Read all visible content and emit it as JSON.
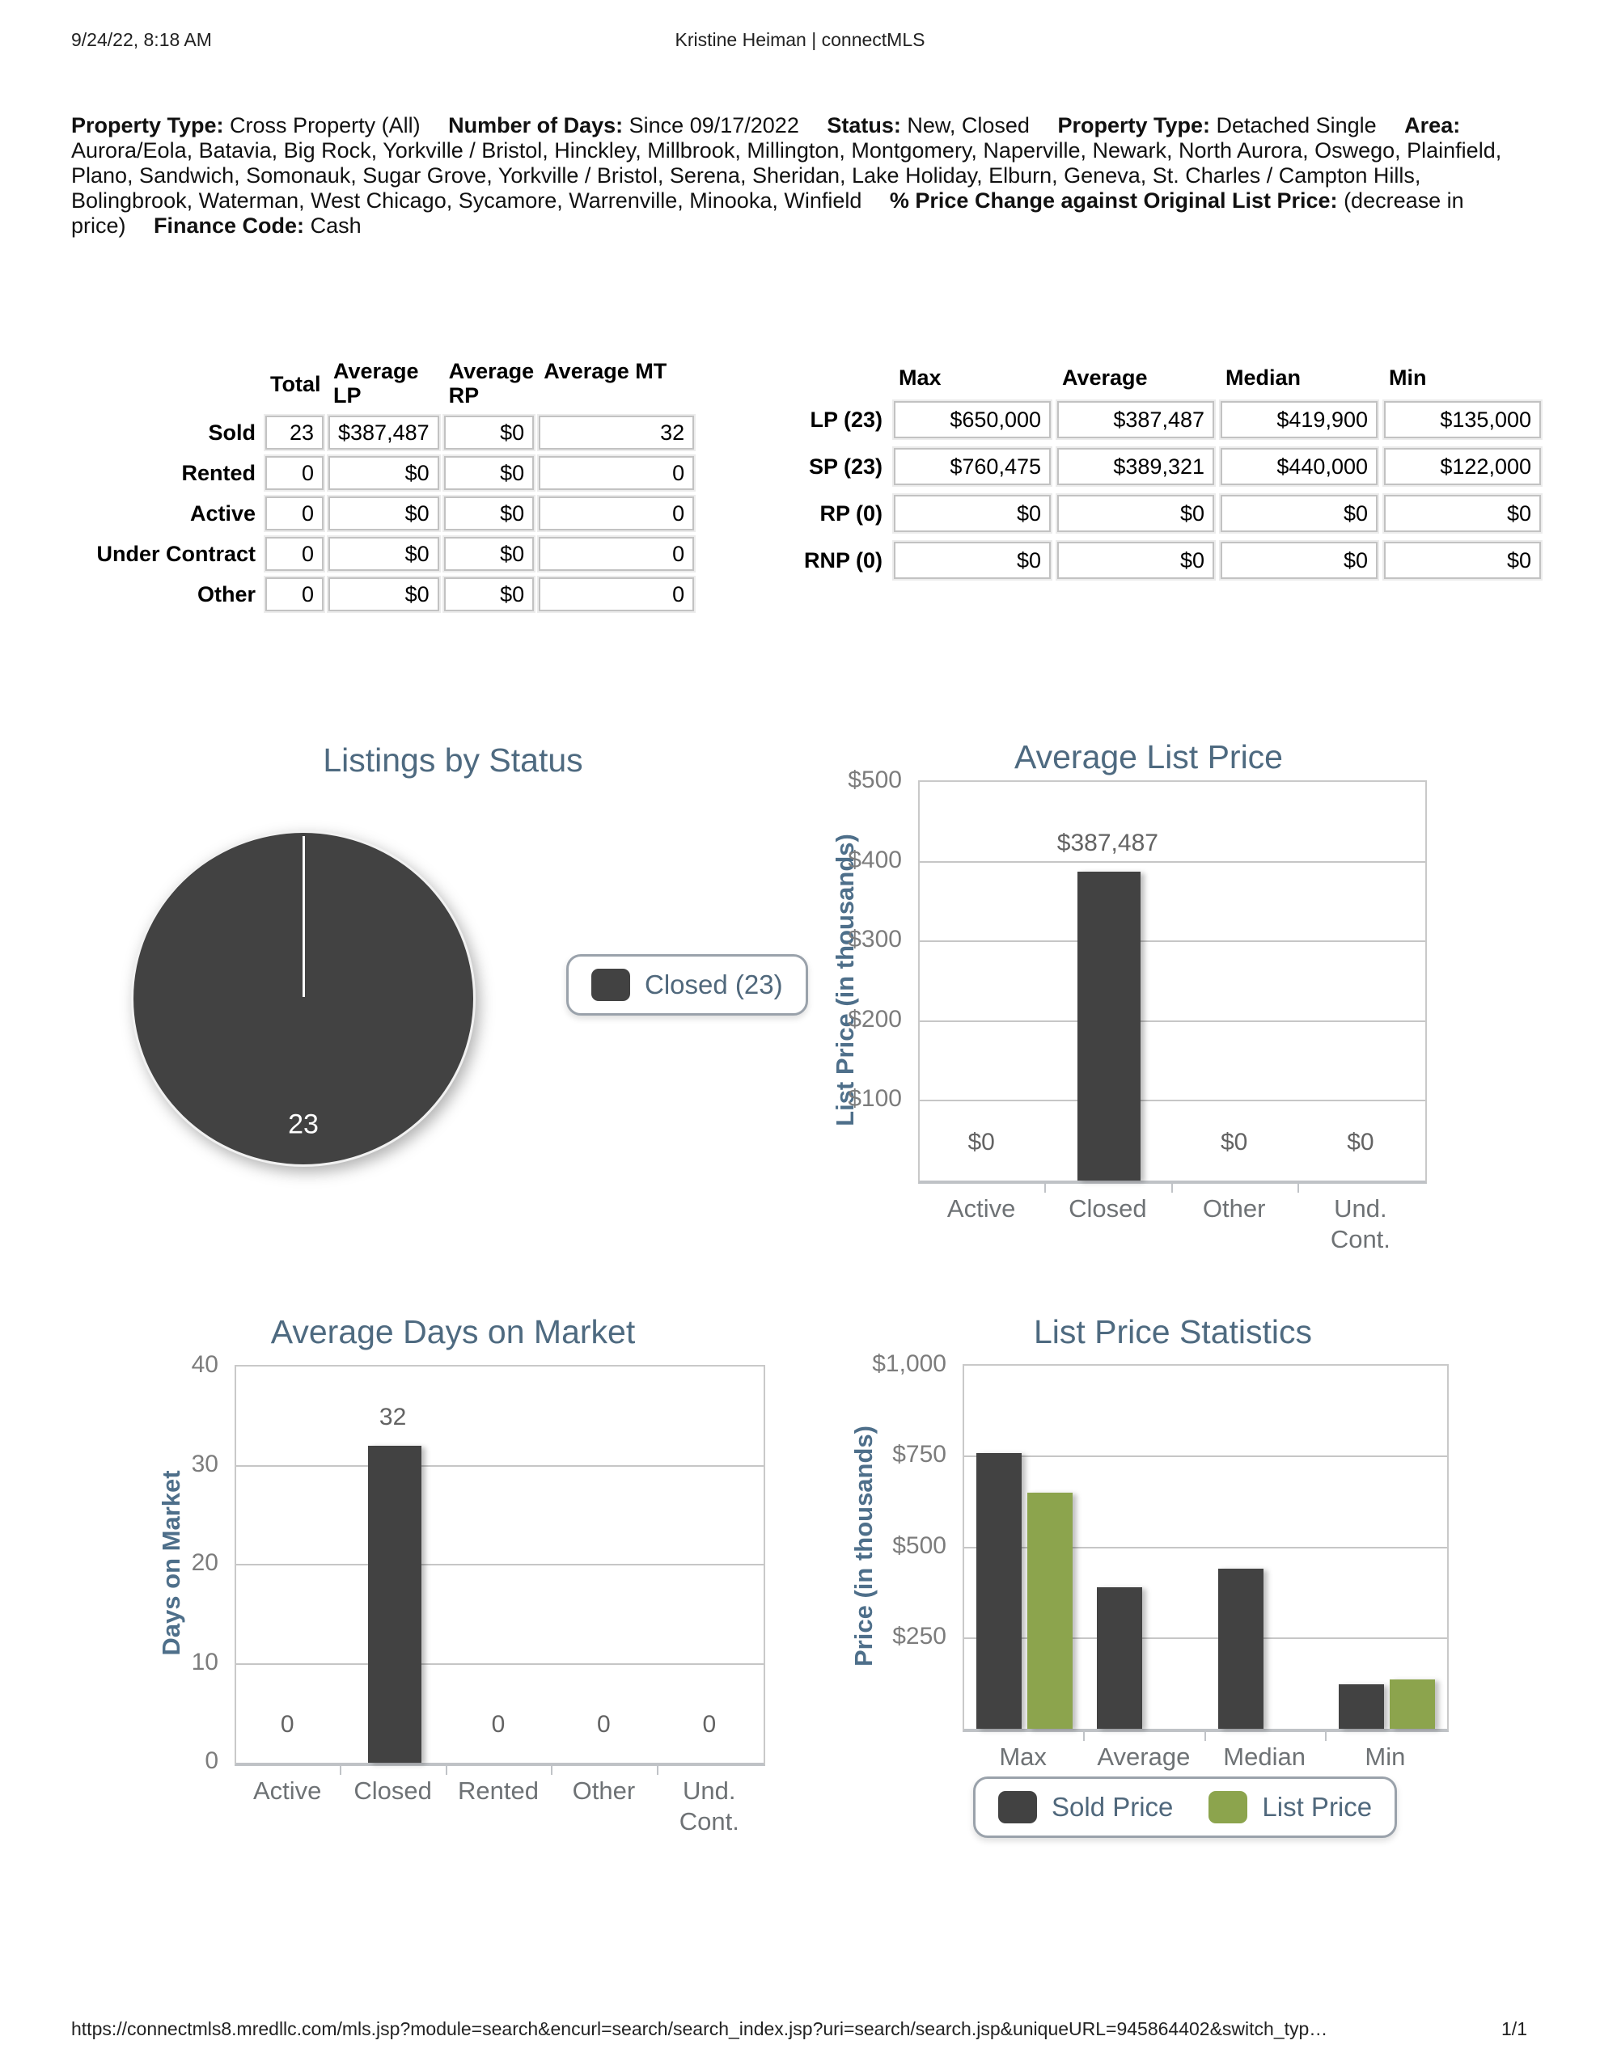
{
  "page": {
    "printed_at": "9/24/22, 8:18 AM",
    "header_title": "Kristine Heiman | connectMLS",
    "footer_url": "https://connectmls8.mredllc.com/mls.jsp?module=search&encurl=search/search_index.jsp?uri=search/search.jsp&uniqueURL=945864402&switch_typ…",
    "footer_page": "1/1"
  },
  "criteria": {
    "segments": [
      {
        "label": "Property Type:",
        "value": "Cross Property (All)"
      },
      {
        "label": "Number of Days:",
        "value": "Since 09/17/2022"
      },
      {
        "label": "Status:",
        "value": "New, Closed"
      },
      {
        "label": "Property Type:",
        "value": "Detached Single"
      },
      {
        "label": "Area:",
        "value": "Aurora/Eola, Batavia, Big Rock, Yorkville / Bristol, Hinckley, Millbrook, Millington, Montgomery, Naperville, Newark, North Aurora, Oswego, Plainfield, Plano, Sandwich, Somonauk, Sugar Grove, Yorkville / Bristol, Serena, Sheridan, Lake Holiday, Elburn, Geneva, St. Charles / Campton Hills, Bolingbrook, Waterman, West Chicago, Sycamore, Warrenville, Minooka, Winfield"
      },
      {
        "label": "% Price Change against Original List Price:",
        "value": "(decrease in price)"
      },
      {
        "label": "Finance Code:",
        "value": "Cash"
      }
    ]
  },
  "status_table": {
    "columns": [
      "Total",
      "Average LP",
      "Average RP",
      "Average MT"
    ],
    "rows": [
      {
        "label": "Sold",
        "values": [
          "23",
          "$387,487",
          "$0",
          "32"
        ]
      },
      {
        "label": "Rented",
        "values": [
          "0",
          "$0",
          "$0",
          "0"
        ]
      },
      {
        "label": "Active",
        "values": [
          "0",
          "$0",
          "$0",
          "0"
        ]
      },
      {
        "label": "Under Contract",
        "values": [
          "0",
          "$0",
          "$0",
          "0"
        ]
      },
      {
        "label": "Other",
        "values": [
          "0",
          "$0",
          "$0",
          "0"
        ]
      }
    ]
  },
  "price_table": {
    "columns": [
      "Max",
      "Average",
      "Median",
      "Min"
    ],
    "rows": [
      {
        "label": "LP (23)",
        "values": [
          "$650,000",
          "$387,487",
          "$419,900",
          "$135,000"
        ]
      },
      {
        "label": "SP (23)",
        "values": [
          "$760,475",
          "$389,321",
          "$440,000",
          "$122,000"
        ]
      },
      {
        "label": "RP (0)",
        "values": [
          "$0",
          "$0",
          "$0",
          "$0"
        ]
      },
      {
        "label": "RNP (0)",
        "values": [
          "$0",
          "$0",
          "$0",
          "$0"
        ]
      }
    ]
  },
  "colors": {
    "chart_title": "#4e6a80",
    "sold_dark": "#424242",
    "list_green": "#8ca44d"
  },
  "chart_data": [
    {
      "id": "listings-by-status",
      "type": "pie",
      "title": "Listings by Status",
      "slices": [
        {
          "label": "Closed",
          "value": 23,
          "color": "#424242",
          "data_label": "23"
        }
      ],
      "legend": [
        {
          "label": "Closed (23)",
          "color": "#424242"
        }
      ],
      "legend_position": "right"
    },
    {
      "id": "average-list-price",
      "type": "bar",
      "title": "Average List Price",
      "ylabel": "List Price (in thousands)",
      "categories": [
        "Active",
        "Closed",
        "Other",
        "Und.\nCont."
      ],
      "values": [
        0,
        387.487,
        0,
        0
      ],
      "bar_labels": [
        "$0",
        "$387,487",
        "$0",
        "$0"
      ],
      "bar_color": "#424242",
      "ylim": [
        0,
        500
      ],
      "yticks": [
        {
          "value": 500,
          "label": "$500"
        },
        {
          "value": 400,
          "label": "$400"
        },
        {
          "value": 300,
          "label": "$300"
        },
        {
          "value": 200,
          "label": "$200"
        },
        {
          "value": 100,
          "label": "$100"
        }
      ],
      "grid": true
    },
    {
      "id": "average-days-on-market",
      "type": "bar",
      "title": "Average Days on Market",
      "ylabel": "Days on Market",
      "categories": [
        "Active",
        "Closed",
        "Rented",
        "Other",
        "Und.\nCont."
      ],
      "values": [
        0,
        32,
        0,
        0,
        0
      ],
      "bar_labels": [
        "0",
        "32",
        "0",
        "0",
        "0"
      ],
      "bar_color": "#424242",
      "ylim": [
        0,
        40
      ],
      "yticks": [
        {
          "value": 40,
          "label": "40"
        },
        {
          "value": 30,
          "label": "30"
        },
        {
          "value": 20,
          "label": "20"
        },
        {
          "value": 10,
          "label": "10"
        },
        {
          "value": 0,
          "label": "0"
        }
      ],
      "grid": true
    },
    {
      "id": "list-price-statistics",
      "type": "grouped_bar",
      "title": "List Price Statistics",
      "ylabel": "Price (in thousands)",
      "categories": [
        "Max",
        "Average",
        "Median",
        "Min"
      ],
      "series": [
        {
          "name": "Sold Price",
          "color": "#424242",
          "values": [
            760.475,
            389.321,
            440,
            122
          ]
        },
        {
          "name": "List Price",
          "color": "#8ca44d",
          "values": [
            650,
            null,
            null,
            135
          ]
        }
      ],
      "ylim": [
        0,
        1000
      ],
      "yticks": [
        {
          "value": 1000,
          "label": "$1,000"
        },
        {
          "value": 750,
          "label": "$750"
        },
        {
          "value": 500,
          "label": "$500"
        },
        {
          "value": 250,
          "label": "$250"
        }
      ],
      "legend": [
        {
          "label": "Sold Price",
          "color": "#424242"
        },
        {
          "label": "List Price",
          "color": "#8ca44d"
        }
      ],
      "legend_position": "bottom",
      "grid": true
    }
  ]
}
